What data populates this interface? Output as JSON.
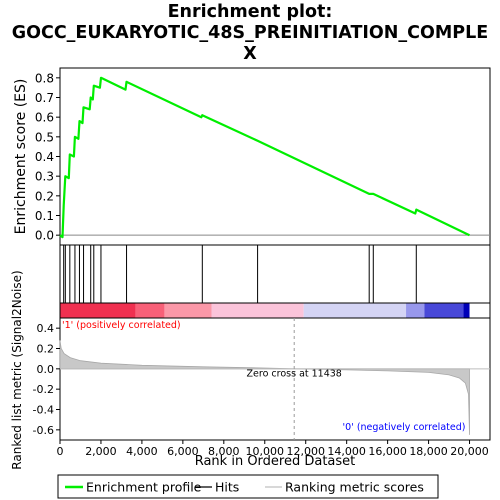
{
  "chart_data": {
    "type": "line",
    "title_lines": [
      "Enrichment plot:",
      "GOCC_EUKARYOTIC_48S_PREINITIATION_COMPLE",
      "X"
    ],
    "es_panel": {
      "ylabel": "Enrichment score (ES)",
      "ylim": [
        -0.05,
        0.85
      ],
      "yticks": [
        "0.0",
        "0.1",
        "0.2",
        "0.3",
        "0.4",
        "0.5",
        "0.6",
        "0.7",
        "0.8"
      ],
      "ytick_values": [
        0.0,
        0.1,
        0.2,
        0.3,
        0.4,
        0.5,
        0.6,
        0.7,
        0.8
      ],
      "xlim": [
        0,
        21000
      ],
      "series_color": "#00ee00",
      "series": [
        {
          "x": 0,
          "y": 0.0
        },
        {
          "x": 120,
          "y": -0.01
        },
        {
          "x": 180,
          "y": 0.15
        },
        {
          "x": 260,
          "y": 0.3
        },
        {
          "x": 430,
          "y": 0.29
        },
        {
          "x": 480,
          "y": 0.41
        },
        {
          "x": 680,
          "y": 0.4
        },
        {
          "x": 730,
          "y": 0.5
        },
        {
          "x": 900,
          "y": 0.49
        },
        {
          "x": 950,
          "y": 0.58
        },
        {
          "x": 1100,
          "y": 0.57
        },
        {
          "x": 1150,
          "y": 0.65
        },
        {
          "x": 1450,
          "y": 0.64
        },
        {
          "x": 1500,
          "y": 0.7
        },
        {
          "x": 1600,
          "y": 0.69
        },
        {
          "x": 1650,
          "y": 0.76
        },
        {
          "x": 1950,
          "y": 0.75
        },
        {
          "x": 2000,
          "y": 0.8
        },
        {
          "x": 3200,
          "y": 0.74
        },
        {
          "x": 3250,
          "y": 0.78
        },
        {
          "x": 6900,
          "y": 0.6
        },
        {
          "x": 6950,
          "y": 0.61
        },
        {
          "x": 9650,
          "y": 0.48
        },
        {
          "x": 15100,
          "y": 0.21
        },
        {
          "x": 15300,
          "y": 0.21
        },
        {
          "x": 17350,
          "y": 0.11
        },
        {
          "x": 17400,
          "y": 0.13
        },
        {
          "x": 20000,
          "y": 0.0
        }
      ]
    },
    "hits": [
      180,
      260,
      480,
      730,
      950,
      1150,
      1500,
      1650,
      2000,
      3250,
      6950,
      9650,
      15100,
      15300,
      17400
    ],
    "ranked_panel": {
      "ylabel": "Ranked list metric (Signal2Noise)",
      "xlabel": "Rank in Ordered Dataset",
      "ylim": [
        -0.7,
        0.5
      ],
      "yticks": [
        "0.4",
        "0.2",
        "0.0",
        "-0.2",
        "-0.4",
        "-0.6"
      ],
      "ytick_values": [
        0.4,
        0.2,
        0.0,
        -0.2,
        -0.4,
        -0.6
      ],
      "xlim": [
        0,
        21000
      ],
      "xticks": [
        "0",
        "2,000",
        "4,000",
        "6,000",
        "8,000",
        "10,000",
        "12,000",
        "14,000",
        "16,000",
        "18,000",
        "20,000"
      ],
      "xtick_values": [
        0,
        2000,
        4000,
        6000,
        8000,
        10000,
        12000,
        14000,
        16000,
        18000,
        20000
      ],
      "metric_curve": [
        {
          "x": 0,
          "y": 0.28
        },
        {
          "x": 60,
          "y": 0.2
        },
        {
          "x": 200,
          "y": 0.15
        },
        {
          "x": 500,
          "y": 0.11
        },
        {
          "x": 1000,
          "y": 0.08
        },
        {
          "x": 2000,
          "y": 0.055
        },
        {
          "x": 4000,
          "y": 0.035
        },
        {
          "x": 7000,
          "y": 0.02
        },
        {
          "x": 10000,
          "y": 0.008
        },
        {
          "x": 11438,
          "y": 0.0
        },
        {
          "x": 14000,
          "y": -0.01
        },
        {
          "x": 16000,
          "y": -0.02
        },
        {
          "x": 18000,
          "y": -0.035
        },
        {
          "x": 19000,
          "y": -0.06
        },
        {
          "x": 19500,
          "y": -0.09
        },
        {
          "x": 19800,
          "y": -0.14
        },
        {
          "x": 19950,
          "y": -0.25
        },
        {
          "x": 20000,
          "y": -0.65
        }
      ],
      "zero_cross_x": 11438,
      "zero_cross_label": "Zero cross at 11438",
      "pos_label": "'1' (positively correlated)",
      "neg_label": "'0' (negatively correlated)",
      "pos_color": "#ff0000",
      "neg_color": "#0000ff"
    },
    "heat_segments": [
      {
        "from": 0,
        "to": 3700,
        "color": "#f03050"
      },
      {
        "from": 3700,
        "to": 5100,
        "color": "#f86078"
      },
      {
        "from": 5100,
        "to": 7400,
        "color": "#fb98a8"
      },
      {
        "from": 7400,
        "to": 11900,
        "color": "#fbc4da"
      },
      {
        "from": 11900,
        "to": 16900,
        "color": "#d4d4f4"
      },
      {
        "from": 16900,
        "to": 17800,
        "color": "#9898ec"
      },
      {
        "from": 17800,
        "to": 19700,
        "color": "#4848d8"
      },
      {
        "from": 19700,
        "to": 20000,
        "color": "#0000b8"
      }
    ],
    "legend": {
      "placement": "bottom",
      "items": [
        {
          "label": "Enrichment profile",
          "color": "#00ee00"
        },
        {
          "label": "Hits",
          "color": "#000000"
        },
        {
          "label": "Ranking metric scores",
          "color": "#c0c0c0"
        }
      ]
    }
  }
}
